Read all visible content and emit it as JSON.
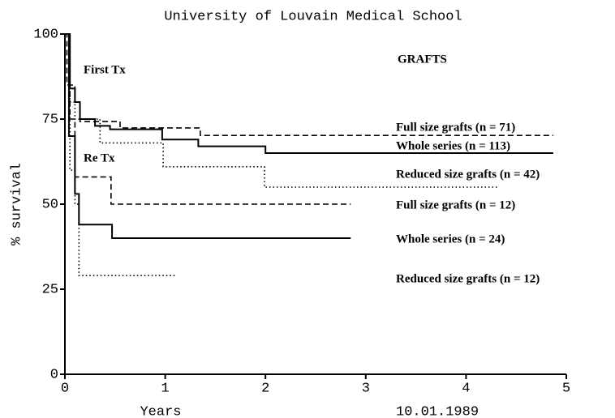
{
  "chart_data": {
    "type": "step",
    "title": "University of Louvain Medical School",
    "x_label": "Years",
    "y_label": "% survival",
    "annotations": [
      "First Tx",
      "Re Tx",
      "GRAFTS",
      "10.01.1989"
    ],
    "xlim": [
      0,
      5
    ],
    "ylim": [
      0,
      100
    ],
    "xticks": [
      0,
      1,
      2,
      3,
      4,
      5
    ],
    "yticks": [
      0,
      25,
      50,
      75,
      100
    ],
    "series": [
      {
        "name": "Full size grafts (n = 71)",
        "color": "#000000",
        "dash": "dashed",
        "x": [
          0,
          0.02,
          0.1,
          0.15,
          0.55,
          1.35,
          4.87
        ],
        "values": [
          100,
          85,
          80,
          74.3,
          72.4,
          70.2,
          70.2
        ]
      },
      {
        "name": "Whole series (n = 113)",
        "color": "#000000",
        "dash": "solid",
        "x": [
          0,
          0.05,
          0.1,
          0.15,
          0.3,
          0.45,
          0.97,
          1.33,
          2.0,
          4.87
        ],
        "values": [
          100,
          84,
          80,
          75,
          73,
          72,
          69,
          67,
          65,
          65
        ]
      },
      {
        "name": "Reduced size grafts (n = 42)",
        "color": "#000000",
        "dash": "dotted",
        "x": [
          0,
          0.05,
          0.1,
          0.35,
          0.98,
          1.99,
          4.33
        ],
        "values": [
          100,
          80,
          75,
          68,
          61,
          55,
          55
        ]
      },
      {
        "name": "Full size grafts (n = 12)",
        "color": "#000000",
        "dash": "dashed",
        "x": [
          0,
          0.05,
          0.1,
          0.46,
          2.85
        ],
        "values": [
          100,
          75,
          58,
          50,
          50
        ]
      },
      {
        "name": "Whole series (n = 24)",
        "color": "#000000",
        "dash": "solid",
        "x": [
          0,
          0.04,
          0.1,
          0.14,
          0.47,
          2.85
        ],
        "values": [
          100,
          70,
          53,
          44,
          40,
          40
        ]
      },
      {
        "name": "Reduced size grafts (n = 12)",
        "color": "#000000",
        "dash": "dotted",
        "x": [
          0,
          0.05,
          0.1,
          0.14,
          1.1
        ],
        "values": [
          100,
          60,
          50,
          29,
          29
        ]
      }
    ]
  }
}
